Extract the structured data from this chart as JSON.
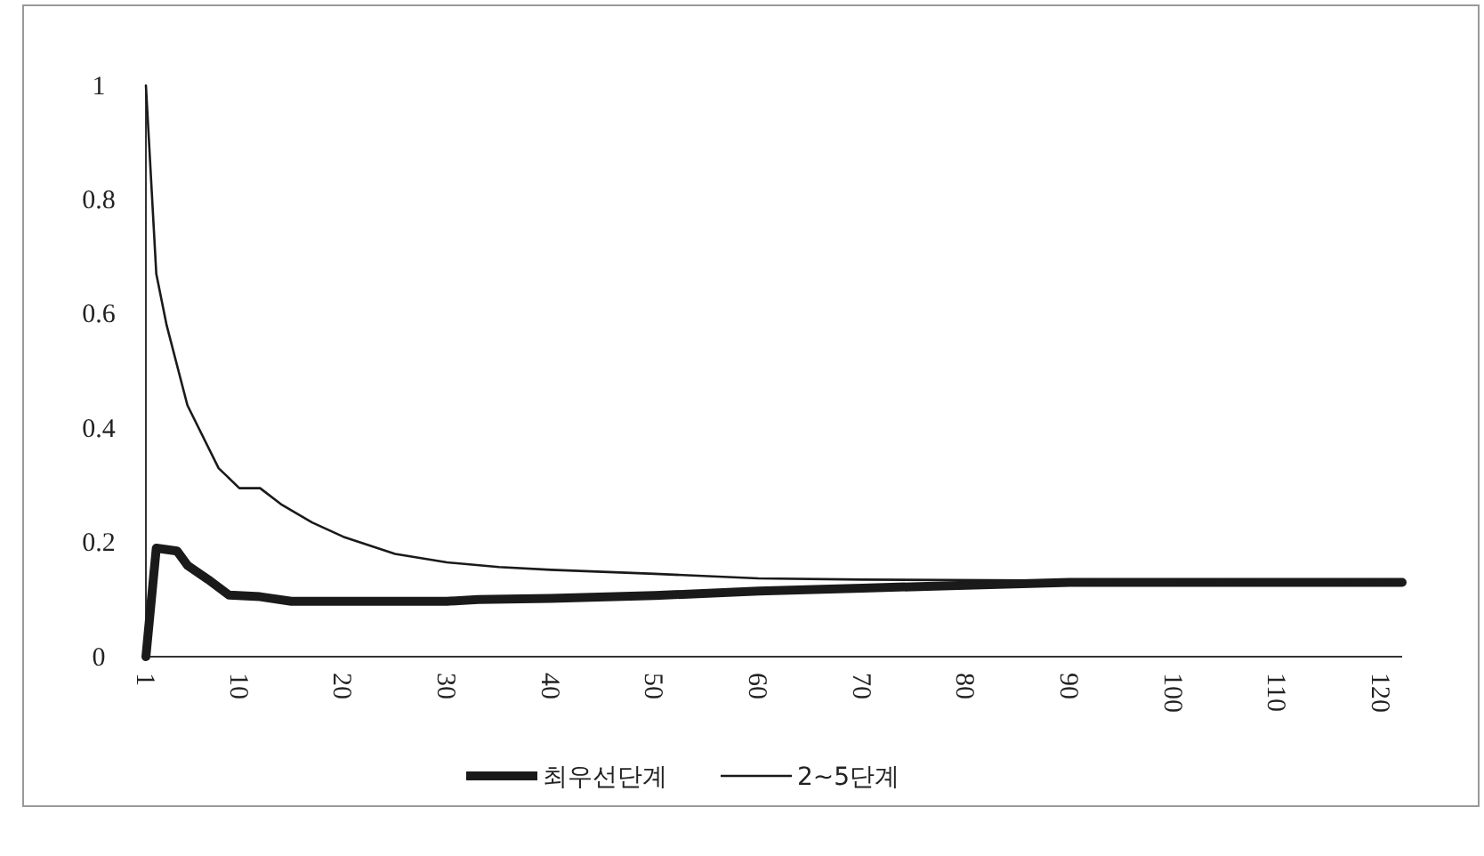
{
  "chart_data": {
    "type": "line",
    "xlim": [
      1,
      122
    ],
    "xticks": [
      1,
      10,
      20,
      30,
      40,
      50,
      60,
      70,
      80,
      90,
      100,
      110,
      120
    ],
    "ylim": [
      0,
      1
    ],
    "yticks": [
      0,
      0.2,
      0.4,
      0.6,
      0.8,
      1
    ],
    "legend": "bottom",
    "grid": false,
    "series": [
      {
        "name": "최우선단계",
        "color": "#1a1a1a",
        "x": [
          1,
          2,
          4,
          5,
          7,
          9,
          12,
          15,
          30,
          33,
          40,
          50,
          60,
          70,
          80,
          90,
          122
        ],
        "values": [
          0,
          0.19,
          0.185,
          0.16,
          0.135,
          0.108,
          0.105,
          0.097,
          0.097,
          0.1,
          0.102,
          0.107,
          0.115,
          0.12,
          0.125,
          0.13,
          0.13
        ]
      },
      {
        "name": "2~5단계",
        "color": "#1a1a1a",
        "x": [
          1,
          2,
          3,
          5,
          8,
          10,
          11,
          12,
          14,
          17,
          20,
          25,
          30,
          35,
          40,
          50,
          60,
          70,
          90,
          122
        ],
        "values": [
          1,
          0.67,
          0.58,
          0.44,
          0.33,
          0.295,
          0.295,
          0.295,
          0.267,
          0.235,
          0.21,
          0.18,
          0.165,
          0.157,
          0.152,
          0.145,
          0.137,
          0.135,
          0.133,
          0.13
        ]
      }
    ]
  }
}
